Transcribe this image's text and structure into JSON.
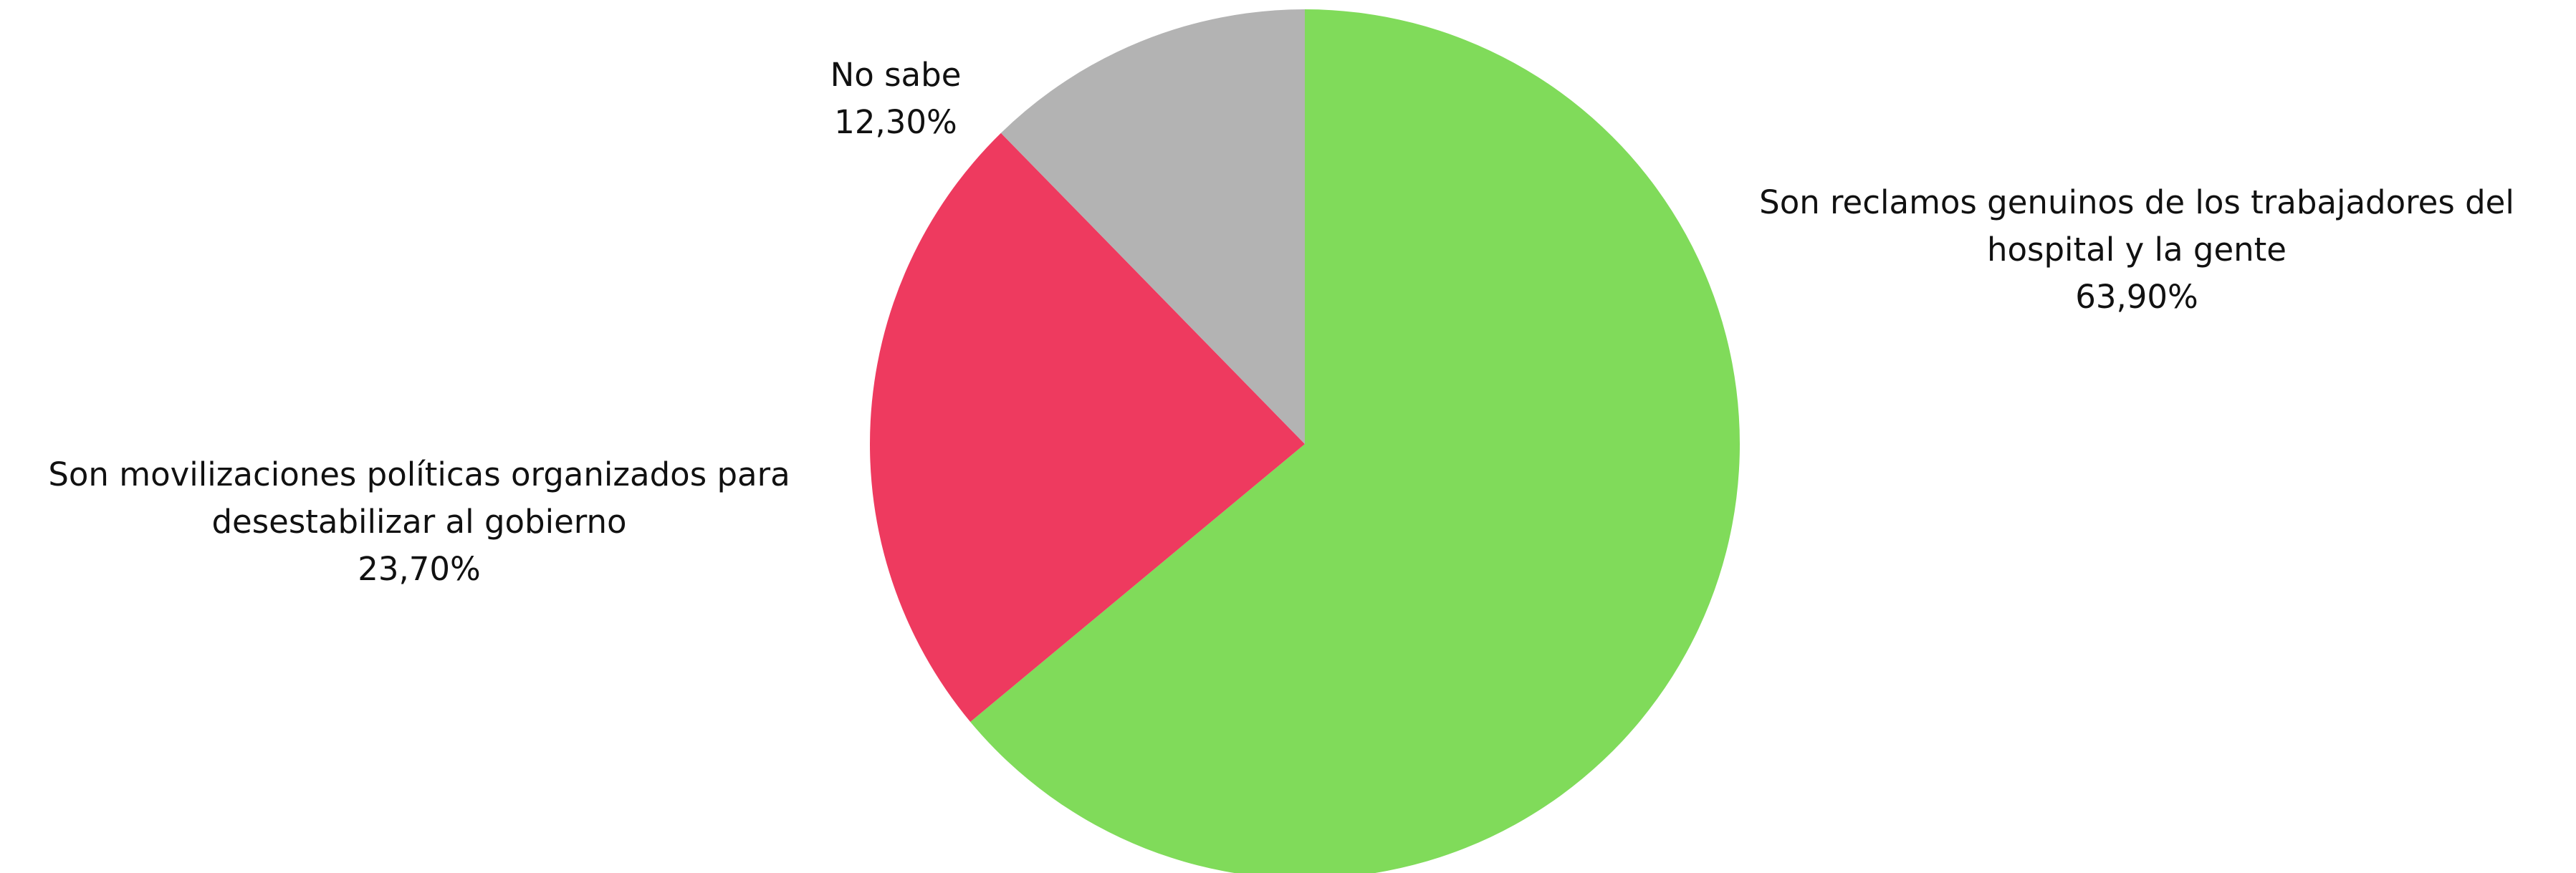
{
  "chart_data": {
    "type": "pie",
    "start_angle_deg": 0,
    "direction": "clockwise",
    "slices": [
      {
        "label": "Son reclamos genuinos de los trabajadores del hospital y la gente",
        "value": 63.9,
        "value_label": "63,90%",
        "color": "#80db5a"
      },
      {
        "label": "Son movilizaciones políticas organizados para desestabilizar al gobierno",
        "value": 23.7,
        "value_label": "23,70%",
        "color": "#ee3a5f"
      },
      {
        "label": "No sabe",
        "value": 12.3,
        "value_label": "12,30%",
        "color": "#b3b3b3"
      }
    ]
  }
}
